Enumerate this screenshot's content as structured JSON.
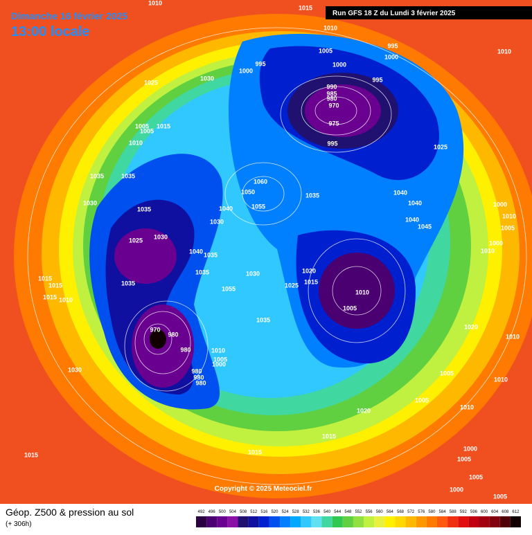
{
  "header": {
    "date": "Dimanche 16 février 2025",
    "time": "13:00 locale",
    "run": "Run GFS 18 Z du Lundi 3 février 2025"
  },
  "map": {
    "isobar_labels": [
      1010,
      1015,
      1010,
      995,
      1005,
      1000,
      1010,
      995,
      1000,
      1000,
      1025,
      1030,
      995,
      990,
      985,
      980,
      970,
      975,
      995,
      1025,
      1005,
      1015,
      1005,
      1010,
      1035,
      1035,
      1060,
      1050,
      1055,
      1035,
      1040,
      1040,
      1040,
      1045,
      1000,
      1010,
      1005,
      1000,
      1010,
      1030,
      1035,
      1040,
      1030,
      1025,
      1030,
      1040,
      1035,
      1035,
      1020,
      1015,
      1025,
      1030,
      1010,
      1005,
      1035,
      1015,
      1015,
      1015,
      1010,
      1055,
      1035,
      1020,
      1010,
      970,
      980,
      980,
      1010,
      1005,
      1000,
      980,
      980,
      980,
      1030,
      1005,
      1010,
      1005,
      1020,
      1010,
      1015,
      1015,
      1015,
      1000,
      1005,
      1005,
      1000,
      1005
    ],
    "copyright": "Copyright © 2025 Meteociel.fr"
  },
  "footer": {
    "title": "Géop. Z500 & pression au sol",
    "lead": "(+ 306h)",
    "scale": {
      "values": [
        492,
        496,
        500,
        504,
        508,
        512,
        516,
        520,
        524,
        528,
        532,
        536,
        540,
        544,
        548,
        552,
        556,
        560,
        564,
        568,
        572,
        576,
        580,
        584,
        588,
        592,
        596,
        600,
        604,
        608,
        612
      ],
      "colors": [
        "#2a0040",
        "#4a0070",
        "#6a0090",
        "#8a10a8",
        "#201070",
        "#1010a0",
        "#0020d0",
        "#0050f0",
        "#0080ff",
        "#00a8ff",
        "#30c8ff",
        "#60e0f0",
        "#40d8a0",
        "#30c850",
        "#60d040",
        "#90e040",
        "#c0f040",
        "#e8f040",
        "#fff000",
        "#ffd800",
        "#ffb800",
        "#ff9800",
        "#ff7a00",
        "#ff5a10",
        "#f03010",
        "#e01010",
        "#c00010",
        "#a00010",
        "#800010",
        "#500008",
        "#100000"
      ]
    }
  }
}
